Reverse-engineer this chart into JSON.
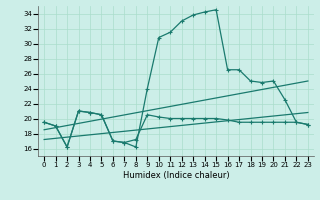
{
  "background_color": "#cceee8",
  "grid_color": "#aaddcc",
  "line_color": "#1a7a6e",
  "xlabel": "Humidex (Indice chaleur)",
  "xlim": [
    -0.5,
    23.5
  ],
  "ylim": [
    15,
    35
  ],
  "yticks": [
    16,
    18,
    20,
    22,
    24,
    26,
    28,
    30,
    32,
    34
  ],
  "xticks": [
    0,
    1,
    2,
    3,
    4,
    5,
    6,
    7,
    8,
    9,
    10,
    11,
    12,
    13,
    14,
    15,
    16,
    17,
    18,
    19,
    20,
    21,
    22,
    23
  ],
  "series": [
    {
      "x": [
        0,
        1,
        2,
        3,
        4,
        5,
        6,
        7,
        8,
        9,
        10,
        11,
        12,
        13,
        14,
        15,
        16,
        17,
        18,
        19,
        20,
        21,
        22,
        23
      ],
      "y": [
        19.5,
        19.0,
        16.2,
        21.0,
        20.8,
        20.5,
        17.0,
        16.8,
        16.2,
        24.0,
        30.8,
        31.5,
        33.0,
        33.8,
        34.2,
        34.5,
        26.5,
        26.5,
        25.0,
        24.8,
        25.0,
        22.5,
        19.5,
        19.2
      ],
      "marker": true
    },
    {
      "x": [
        0,
        1,
        2,
        3,
        4,
        5,
        6,
        7,
        8,
        9,
        10,
        11,
        12,
        13,
        14,
        15,
        16,
        17,
        18,
        19,
        20,
        21,
        22,
        23
      ],
      "y": [
        19.5,
        19.0,
        16.2,
        21.0,
        20.8,
        20.5,
        17.0,
        16.8,
        17.2,
        20.5,
        20.2,
        20.0,
        20.0,
        20.0,
        20.0,
        20.0,
        19.8,
        19.5,
        19.5,
        19.5,
        19.5,
        19.5,
        19.5,
        19.2
      ],
      "marker": true
    },
    {
      "x": [
        0,
        23
      ],
      "y": [
        18.5,
        25.0
      ],
      "marker": false
    },
    {
      "x": [
        0,
        23
      ],
      "y": [
        17.2,
        20.8
      ],
      "marker": false
    }
  ]
}
